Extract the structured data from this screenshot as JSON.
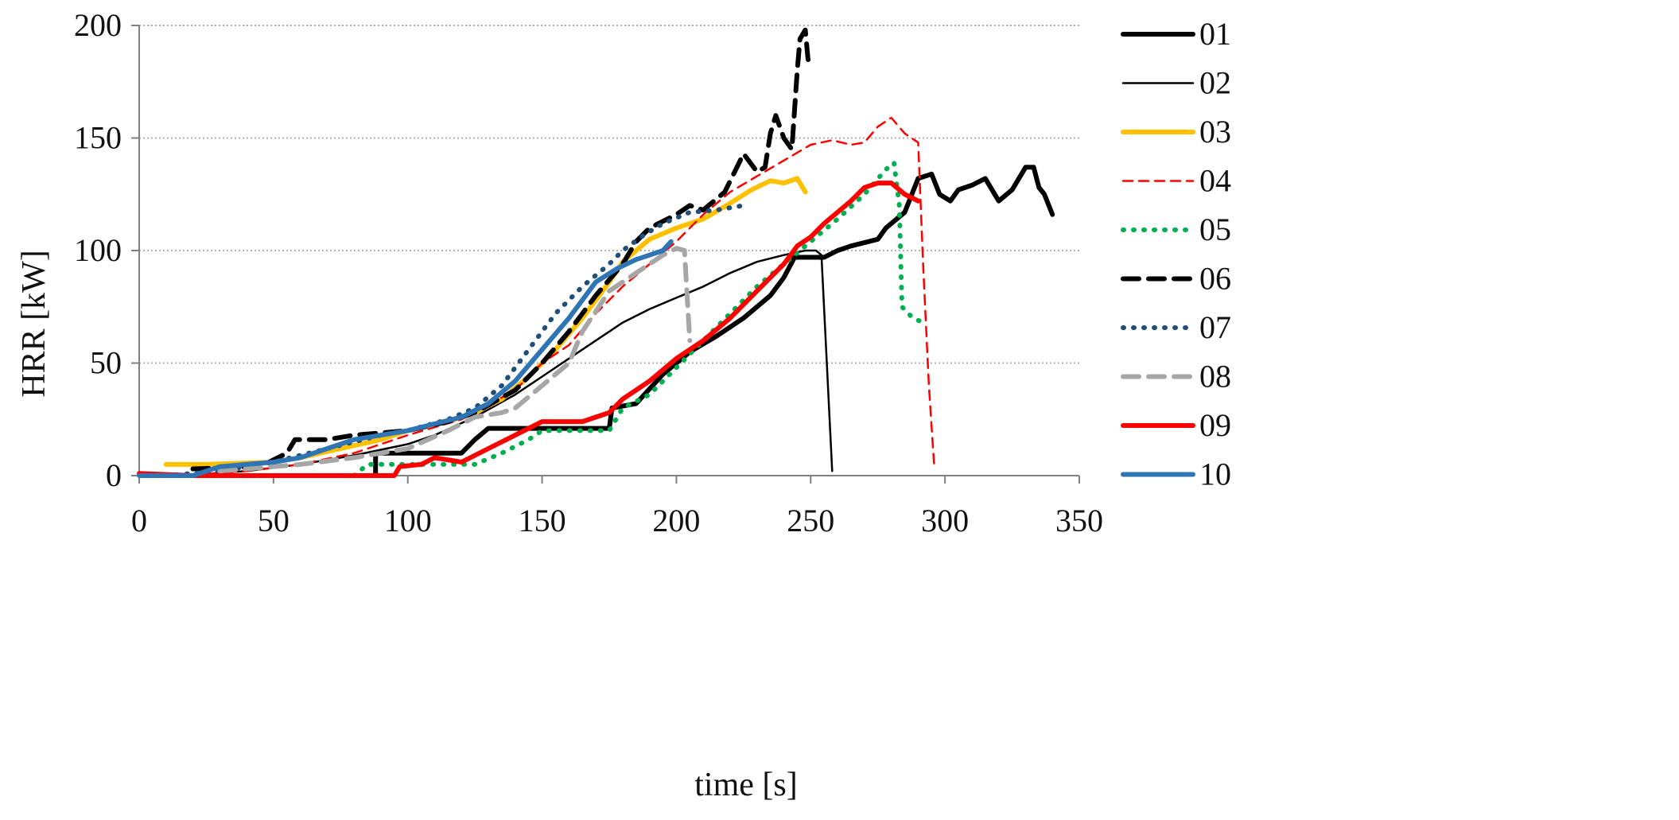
{
  "chart_data": {
    "type": "line",
    "title": "",
    "xlabel": "time [s]",
    "ylabel": "HRR [kW]",
    "xlim": [
      0,
      350
    ],
    "ylim": [
      0,
      200
    ],
    "xticks": [
      0,
      50,
      100,
      150,
      200,
      250,
      300,
      350
    ],
    "yticks": [
      0,
      50,
      100,
      150,
      200
    ],
    "grid": "horizontal dotted",
    "legend_position": "right",
    "series": [
      {
        "name": "01",
        "color": "#000000",
        "style": "solid",
        "weight": "thick",
        "points": [
          [
            88,
            0
          ],
          [
            88,
            10
          ],
          [
            105,
            10
          ],
          [
            120,
            10
          ],
          [
            125,
            16
          ],
          [
            130,
            21
          ],
          [
            175,
            21
          ],
          [
            176,
            30
          ],
          [
            185,
            32
          ],
          [
            195,
            45
          ],
          [
            205,
            55
          ],
          [
            215,
            62
          ],
          [
            225,
            70
          ],
          [
            235,
            80
          ],
          [
            240,
            88
          ],
          [
            244,
            97
          ],
          [
            255,
            97
          ],
          [
            260,
            100
          ],
          [
            265,
            102
          ],
          [
            275,
            105
          ],
          [
            278,
            110
          ],
          [
            285,
            117
          ],
          [
            290,
            132
          ],
          [
            295,
            134
          ],
          [
            298,
            125
          ],
          [
            302,
            122
          ],
          [
            305,
            127
          ],
          [
            310,
            129
          ],
          [
            315,
            132
          ],
          [
            320,
            122
          ],
          [
            325,
            127
          ],
          [
            330,
            137
          ],
          [
            333,
            137
          ],
          [
            335,
            128
          ],
          [
            337,
            125
          ],
          [
            340,
            116
          ]
        ]
      },
      {
        "name": "02",
        "color": "#000000",
        "style": "solid",
        "weight": "thin",
        "points": [
          [
            15,
            0
          ],
          [
            40,
            2
          ],
          [
            60,
            5
          ],
          [
            80,
            9
          ],
          [
            100,
            14
          ],
          [
            110,
            18
          ],
          [
            125,
            26
          ],
          [
            140,
            36
          ],
          [
            150,
            44
          ],
          [
            160,
            52
          ],
          [
            170,
            60
          ],
          [
            180,
            68
          ],
          [
            190,
            74
          ],
          [
            200,
            79
          ],
          [
            210,
            84
          ],
          [
            220,
            90
          ],
          [
            230,
            95
          ],
          [
            240,
            98
          ],
          [
            248,
            100
          ],
          [
            252,
            100
          ],
          [
            254,
            98
          ],
          [
            258,
            2
          ]
        ]
      },
      {
        "name": "03",
        "color": "#ffc000",
        "style": "solid",
        "weight": "thick",
        "points": [
          [
            10,
            5
          ],
          [
            25,
            5
          ],
          [
            50,
            6
          ],
          [
            60,
            8
          ],
          [
            75,
            12
          ],
          [
            90,
            16
          ],
          [
            100,
            20
          ],
          [
            115,
            24
          ],
          [
            125,
            28
          ],
          [
            135,
            34
          ],
          [
            145,
            44
          ],
          [
            155,
            56
          ],
          [
            165,
            70
          ],
          [
            175,
            86
          ],
          [
            180,
            95
          ],
          [
            185,
            100
          ],
          [
            190,
            105
          ],
          [
            200,
            110
          ],
          [
            210,
            114
          ],
          [
            220,
            121
          ],
          [
            228,
            127
          ],
          [
            235,
            131
          ],
          [
            240,
            130
          ],
          [
            245,
            132
          ],
          [
            248,
            126
          ]
        ]
      },
      {
        "name": "04",
        "color": "#ff0000",
        "style": "dashed",
        "weight": "thin",
        "points": [
          [
            15,
            0
          ],
          [
            40,
            2
          ],
          [
            60,
            5
          ],
          [
            80,
            10
          ],
          [
            100,
            18
          ],
          [
            120,
            25
          ],
          [
            140,
            38
          ],
          [
            150,
            50
          ],
          [
            160,
            58
          ],
          [
            170,
            72
          ],
          [
            180,
            84
          ],
          [
            190,
            94
          ],
          [
            200,
            104
          ],
          [
            210,
            116
          ],
          [
            220,
            126
          ],
          [
            230,
            133
          ],
          [
            240,
            140
          ],
          [
            250,
            147
          ],
          [
            258,
            149
          ],
          [
            265,
            147
          ],
          [
            270,
            148
          ],
          [
            275,
            155
          ],
          [
            280,
            159
          ],
          [
            285,
            152
          ],
          [
            290,
            148
          ],
          [
            292,
            90
          ],
          [
            294,
            40
          ],
          [
            296,
            4
          ]
        ]
      },
      {
        "name": "05",
        "color": "#00b050",
        "style": "dotted",
        "weight": "thick",
        "points": [
          [
            80,
            0
          ],
          [
            85,
            5
          ],
          [
            110,
            5
          ],
          [
            125,
            5
          ],
          [
            135,
            10
          ],
          [
            145,
            16
          ],
          [
            150,
            20
          ],
          [
            175,
            20
          ],
          [
            180,
            30
          ],
          [
            190,
            36
          ],
          [
            200,
            48
          ],
          [
            210,
            60
          ],
          [
            220,
            72
          ],
          [
            230,
            84
          ],
          [
            240,
            94
          ],
          [
            250,
            104
          ],
          [
            260,
            114
          ],
          [
            270,
            125
          ],
          [
            278,
            136
          ],
          [
            281,
            139
          ],
          [
            283,
            120
          ],
          [
            284,
            75
          ],
          [
            288,
            70
          ],
          [
            292,
            68
          ]
        ]
      },
      {
        "name": "06",
        "color": "#000000",
        "style": "dashed",
        "weight": "thick",
        "points": [
          [
            20,
            3
          ],
          [
            45,
            4
          ],
          [
            55,
            10
          ],
          [
            58,
            16
          ],
          [
            70,
            16
          ],
          [
            80,
            18
          ],
          [
            100,
            20
          ],
          [
            115,
            24
          ],
          [
            125,
            28
          ],
          [
            140,
            38
          ],
          [
            150,
            50
          ],
          [
            160,
            64
          ],
          [
            170,
            80
          ],
          [
            180,
            94
          ],
          [
            185,
            104
          ],
          [
            190,
            110
          ],
          [
            200,
            116
          ],
          [
            205,
            120
          ],
          [
            210,
            118
          ],
          [
            218,
            126
          ],
          [
            225,
            143
          ],
          [
            230,
            135
          ],
          [
            233,
            137
          ],
          [
            235,
            152
          ],
          [
            237,
            160
          ],
          [
            240,
            150
          ],
          [
            243,
            145
          ],
          [
            245,
            180
          ],
          [
            246,
            194
          ],
          [
            248,
            198
          ],
          [
            249,
            185
          ],
          [
            250,
            182
          ]
        ]
      },
      {
        "name": "07",
        "color": "#1f4e79",
        "style": "dotted",
        "weight": "thick",
        "points": [
          [
            10,
            0
          ],
          [
            30,
            2
          ],
          [
            50,
            6
          ],
          [
            70,
            12
          ],
          [
            90,
            18
          ],
          [
            100,
            20
          ],
          [
            115,
            25
          ],
          [
            125,
            30
          ],
          [
            135,
            40
          ],
          [
            145,
            56
          ],
          [
            155,
            72
          ],
          [
            165,
            84
          ],
          [
            175,
            94
          ],
          [
            180,
            100
          ],
          [
            188,
            107
          ],
          [
            195,
            112
          ],
          [
            205,
            117
          ],
          [
            215,
            118
          ],
          [
            225,
            120
          ]
        ]
      },
      {
        "name": "08",
        "color": "#a6a6a6",
        "style": "dashed",
        "weight": "thick",
        "points": [
          [
            30,
            2
          ],
          [
            60,
            5
          ],
          [
            80,
            8
          ],
          [
            100,
            12
          ],
          [
            115,
            20
          ],
          [
            125,
            26
          ],
          [
            135,
            28
          ],
          [
            140,
            30
          ],
          [
            150,
            40
          ],
          [
            160,
            50
          ],
          [
            165,
            64
          ],
          [
            175,
            82
          ],
          [
            185,
            90
          ],
          [
            195,
            98
          ],
          [
            200,
            101
          ],
          [
            203,
            100
          ],
          [
            204,
            80
          ],
          [
            205,
            60
          ]
        ]
      },
      {
        "name": "09",
        "color": "#ff0000",
        "style": "solid",
        "weight": "thick",
        "points": [
          [
            0,
            1
          ],
          [
            20,
            0
          ],
          [
            90,
            0
          ],
          [
            95,
            0
          ],
          [
            97,
            4
          ],
          [
            105,
            5
          ],
          [
            110,
            8
          ],
          [
            120,
            6
          ],
          [
            130,
            12
          ],
          [
            140,
            18
          ],
          [
            150,
            24
          ],
          [
            165,
            24
          ],
          [
            175,
            28
          ],
          [
            180,
            34
          ],
          [
            190,
            42
          ],
          [
            200,
            52
          ],
          [
            210,
            60
          ],
          [
            220,
            70
          ],
          [
            230,
            82
          ],
          [
            240,
            94
          ],
          [
            245,
            102
          ],
          [
            250,
            106
          ],
          [
            255,
            112
          ],
          [
            265,
            122
          ],
          [
            270,
            128
          ],
          [
            275,
            130
          ],
          [
            280,
            130
          ],
          [
            285,
            125
          ],
          [
            290,
            122
          ]
        ]
      },
      {
        "name": "10",
        "color": "#2e75b6",
        "style": "solid",
        "weight": "thick",
        "points": [
          [
            0,
            0
          ],
          [
            20,
            0
          ],
          [
            30,
            4
          ],
          [
            50,
            6
          ],
          [
            60,
            8
          ],
          [
            70,
            12
          ],
          [
            80,
            16
          ],
          [
            90,
            18
          ],
          [
            100,
            20
          ],
          [
            110,
            23
          ],
          [
            120,
            26
          ],
          [
            130,
            32
          ],
          [
            140,
            42
          ],
          [
            150,
            56
          ],
          [
            160,
            70
          ],
          [
            170,
            86
          ],
          [
            178,
            92
          ],
          [
            185,
            96
          ],
          [
            190,
            98
          ],
          [
            195,
            100
          ],
          [
            198,
            104
          ]
        ]
      }
    ]
  }
}
